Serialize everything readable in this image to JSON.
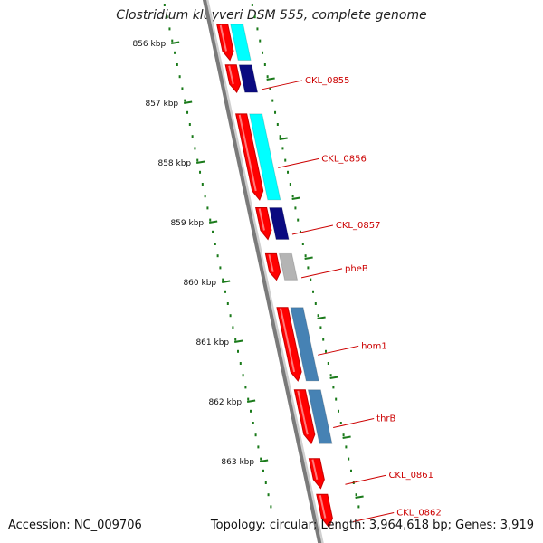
{
  "title": "Clostridium kluyveri DSM 555, complete genome",
  "footer": {
    "accession": "Accession: NC_009706",
    "summary": "Topology: circular; Length: 3,964,618 bp; Genes: 3,919"
  },
  "colors": {
    "backbone": "#7a7a7a",
    "ticks": "#1a7a1a",
    "gene": "#ff0000",
    "label": "#cc0000",
    "cyan": "#00ffff",
    "navy": "#0a0a80",
    "gray": "#b4b4b4",
    "steel": "#4682b4"
  },
  "ruler": {
    "unit": "kbp",
    "labels": [
      "856 kbp",
      "857 kbp",
      "858 kbp",
      "859 kbp",
      "860 kbp",
      "861 kbp",
      "862 kbp",
      "863 kbp"
    ],
    "positions_kbp": [
      856,
      857,
      858,
      859,
      860,
      861,
      862,
      863
    ]
  },
  "genes": [
    {
      "label": "",
      "start_kbp": 855.68,
      "end_kbp": 856.28,
      "feature_color": "cyan"
    },
    {
      "label": "CKL_0855",
      "start_kbp": 856.36,
      "end_kbp": 856.82,
      "feature_color": "navy"
    },
    {
      "label": "CKL_0856",
      "start_kbp": 857.18,
      "end_kbp": 858.62,
      "feature_color": "cyan"
    },
    {
      "label": "CKL_0857",
      "start_kbp": 858.75,
      "end_kbp": 859.28,
      "feature_color": "navy"
    },
    {
      "label": "pheB",
      "start_kbp": 859.52,
      "end_kbp": 859.96,
      "feature_color": "gray"
    },
    {
      "label": "hom1",
      "start_kbp": 860.42,
      "end_kbp": 861.65,
      "feature_color": "steel"
    },
    {
      "label": "thrB",
      "start_kbp": 861.8,
      "end_kbp": 862.7,
      "feature_color": "steel"
    },
    {
      "label": "CKL_0861",
      "start_kbp": 862.95,
      "end_kbp": 863.45,
      "feature_color": null
    },
    {
      "label": "CKL_0862",
      "start_kbp": 863.55,
      "end_kbp": 864.1,
      "feature_color": null
    }
  ]
}
